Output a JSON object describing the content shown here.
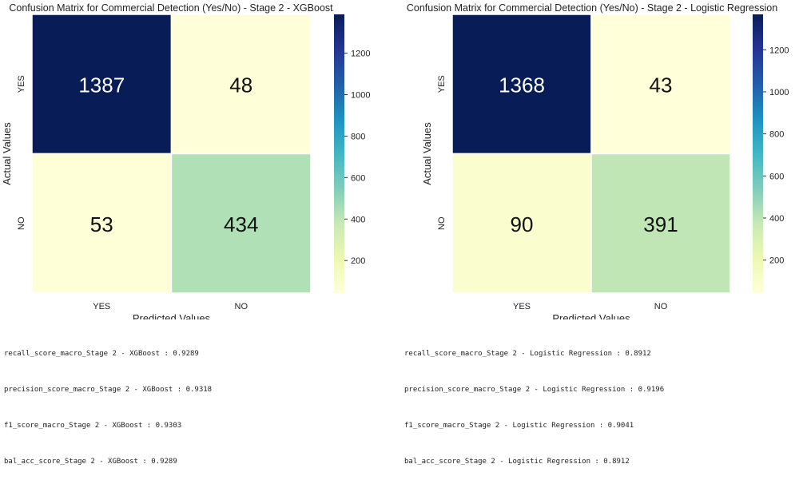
{
  "chart_data": [
    {
      "type": "heatmap",
      "title": "Confusion Matrix for Commercial Detection (Yes/No) - Stage 2 - XGBoost",
      "xlabel": "Predicted Values",
      "ylabel": "Actual Values",
      "x_categories": [
        "YES",
        "NO"
      ],
      "y_categories": [
        "YES",
        "NO"
      ],
      "matrix": [
        [
          1387,
          48
        ],
        [
          53,
          434
        ]
      ],
      "colorbar": {
        "colormap": "YlGnBu",
        "range": [
          43,
          1387
        ],
        "ticks": [
          200,
          400,
          600,
          800,
          1000,
          1200
        ]
      },
      "grid": false,
      "legend": "right"
    },
    {
      "type": "heatmap",
      "title": "Confusion Matrix for Commercial Detection (Yes/No) - Stage 2 - Logistic Regression",
      "xlabel": "Predicted Values",
      "ylabel": "Actual Values",
      "x_categories": [
        "YES",
        "NO"
      ],
      "y_categories": [
        "YES",
        "NO"
      ],
      "matrix": [
        [
          1368,
          43
        ],
        [
          90,
          391
        ]
      ],
      "colorbar": {
        "colormap": "YlGnBu",
        "range": [
          43,
          1368
        ],
        "ticks": [
          200,
          400,
          600,
          800,
          1000,
          1200
        ]
      },
      "grid": false,
      "legend": "right"
    }
  ],
  "metrics": [
    [
      "recall_score_macro_Stage 2 - XGBoost : 0.9289",
      "precision_score_macro_Stage 2 - XGBoost : 0.9318",
      "f1_score_macro_Stage 2 - XGBoost : 0.9303",
      "bal_acc_score_Stage 2 - XGBoost : 0.9289"
    ],
    [
      "recall_score_macro_Stage 2 - Logistic Regression : 0.8912",
      "precision_score_macro_Stage 2 - Logistic Regression : 0.9196",
      "f1_score_macro_Stage 2 - Logistic Regression : 0.9041",
      "bal_acc_score_Stage 2 - Logistic Regression : 0.8912"
    ]
  ]
}
